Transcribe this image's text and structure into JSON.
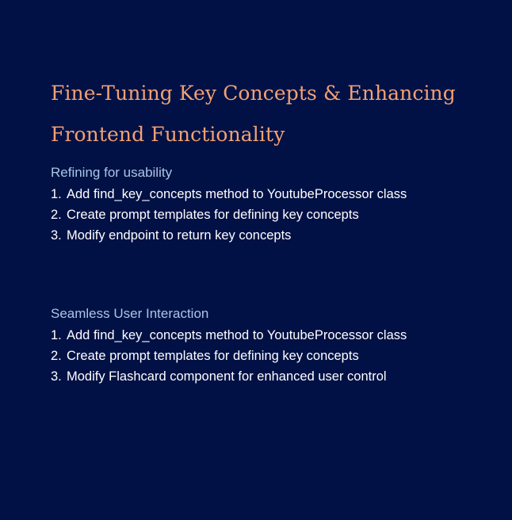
{
  "colors": {
    "background": "#021145",
    "title": "#f2a173",
    "section_heading": "#a9c6e6",
    "body_text": "#ffffff"
  },
  "slide": {
    "title": "Fine-Tuning Key Concepts & Enhancing Frontend Functionality",
    "sections": [
      {
        "heading": "Refining for usability",
        "items": [
          {
            "number": "1.",
            "text": "Add find_key_concepts method to YoutubeProcessor class"
          },
          {
            "number": "2.",
            "text": "Create prompt templates for defining key concepts"
          },
          {
            "number": "3.",
            "text": "Modify endpoint to return key concepts"
          }
        ]
      },
      {
        "heading": "Seamless User Interaction",
        "items": [
          {
            "number": "1.",
            "text": "Add find_key_concepts method to YoutubeProcessor class"
          },
          {
            "number": "2.",
            "text": "Create prompt templates for defining key concepts"
          },
          {
            "number": "3.",
            "text": "Modify Flashcard component for enhanced user control"
          }
        ]
      }
    ]
  }
}
